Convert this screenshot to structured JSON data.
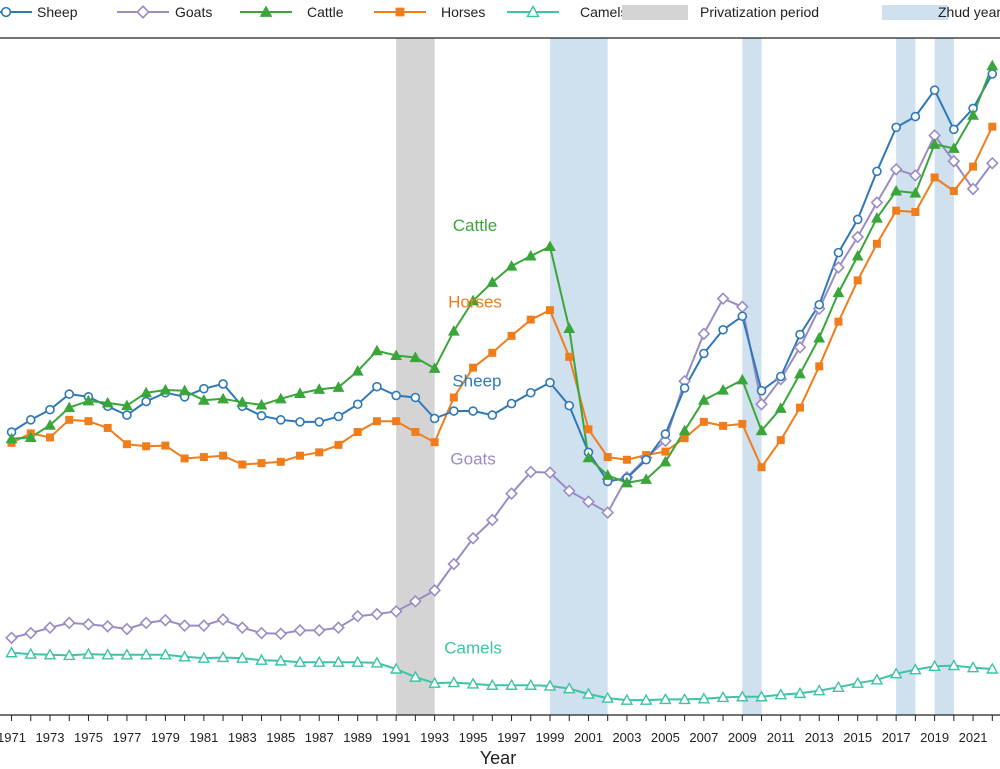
{
  "chart_data": {
    "type": "line",
    "title": "",
    "xlabel": "Year",
    "ylabel": "",
    "x": [
      1971,
      1972,
      1973,
      1974,
      1975,
      1976,
      1977,
      1978,
      1979,
      1980,
      1981,
      1982,
      1983,
      1984,
      1985,
      1986,
      1987,
      1988,
      1989,
      1990,
      1991,
      1992,
      1993,
      1994,
      1995,
      1996,
      1997,
      1998,
      1999,
      2000,
      2001,
      2002,
      2003,
      2004,
      2005,
      2006,
      2007,
      2008,
      2009,
      2010,
      2011,
      2012,
      2013,
      2014,
      2015,
      2016,
      2017,
      2018,
      2019,
      2020,
      2021,
      2022
    ],
    "x_tick_labels": [
      "1971",
      "1973",
      "1975",
      "1977",
      "1979",
      "1981",
      "1983",
      "1985",
      "1987",
      "1989",
      "1991",
      "1993",
      "1995",
      "1997",
      "1999",
      "2001",
      "2003",
      "2005",
      "2007",
      "2009",
      "2011",
      "2013",
      "2015",
      "2017",
      "2019",
      "2021"
    ],
    "xlim": [
      1970.4,
      2022.4
    ],
    "ylim": [
      0,
      100
    ],
    "series": [
      {
        "name": "Sheep",
        "color": "#2f78b7",
        "marker": "circle-open",
        "values": [
          41.8,
          43.6,
          45.1,
          47.4,
          47.0,
          45.6,
          44.3,
          46.3,
          47.6,
          47.0,
          48.2,
          48.9,
          45.6,
          44.2,
          43.6,
          43.3,
          43.3,
          44.1,
          45.9,
          48.5,
          47.2,
          46.9,
          43.8,
          44.9,
          44.9,
          44.3,
          46.0,
          47.6,
          49.1,
          45.7,
          38.8,
          34.5,
          35.0,
          37.7,
          41.5,
          48.3,
          53.4,
          56.9,
          58.9,
          47.9,
          50.0,
          56.2,
          60.6,
          68.3,
          73.2,
          80.3,
          86.8,
          88.4,
          92.3,
          86.5,
          89.6,
          94.7
        ]
      },
      {
        "name": "Goats",
        "color": "#9b8cc6",
        "marker": "diamond-open",
        "values": [
          11.4,
          12.1,
          12.9,
          13.6,
          13.4,
          13.1,
          12.7,
          13.6,
          14.0,
          13.2,
          13.2,
          14.1,
          12.9,
          12.1,
          12.0,
          12.5,
          12.5,
          12.9,
          14.6,
          14.9,
          15.3,
          16.8,
          18.4,
          22.3,
          26.1,
          28.8,
          32.7,
          35.9,
          35.8,
          33.1,
          31.5,
          29.9,
          35.1,
          38.0,
          40.5,
          49.3,
          56.3,
          61.5,
          60.3,
          45.9,
          49.6,
          54.3,
          60.0,
          66.1,
          70.6,
          75.7,
          80.6,
          79.7,
          85.6,
          81.8,
          77.7,
          81.5
        ]
      },
      {
        "name": "Cattle",
        "color": "#3aa63a",
        "marker": "triangle-filled",
        "values": [
          40.8,
          41.0,
          42.8,
          45.4,
          46.4,
          46.1,
          45.7,
          47.6,
          48.0,
          47.9,
          46.5,
          46.7,
          46.2,
          45.8,
          46.7,
          47.5,
          48.1,
          48.4,
          50.8,
          53.8,
          53.1,
          52.8,
          51.2,
          56.7,
          61.2,
          63.9,
          66.3,
          67.8,
          69.2,
          57.1,
          38.0,
          35.4,
          34.3,
          34.8,
          37.4,
          42.0,
          46.5,
          48.0,
          49.5,
          42.0,
          45.3,
          50.4,
          55.7,
          62.4,
          67.8,
          73.4,
          77.4,
          77.1,
          84.3,
          83.7,
          88.6,
          95.9
        ]
      },
      {
        "name": "Horses",
        "color": "#f07d1c",
        "marker": "square-filled",
        "values": [
          40.2,
          41.6,
          41.0,
          43.6,
          43.4,
          42.4,
          40.0,
          39.7,
          39.8,
          37.9,
          38.1,
          38.3,
          37.0,
          37.2,
          37.4,
          38.3,
          38.8,
          39.9,
          41.8,
          43.4,
          43.4,
          41.8,
          40.3,
          46.9,
          51.3,
          53.5,
          56.0,
          58.4,
          59.8,
          52.9,
          42.2,
          38.1,
          37.7,
          38.4,
          38.9,
          40.9,
          43.3,
          42.7,
          43.0,
          36.6,
          40.6,
          45.4,
          51.5,
          58.1,
          64.2,
          69.6,
          74.5,
          74.3,
          79.4,
          77.4,
          81.0,
          86.9
        ]
      },
      {
        "name": "Camels",
        "color": "#3cc4a5",
        "marker": "triangle-open",
        "values": [
          9.2,
          9.0,
          8.9,
          8.8,
          9.0,
          8.9,
          8.9,
          8.9,
          8.9,
          8.6,
          8.4,
          8.5,
          8.4,
          8.1,
          8.0,
          7.8,
          7.8,
          7.8,
          7.8,
          7.7,
          6.8,
          5.6,
          4.7,
          4.8,
          4.6,
          4.4,
          4.4,
          4.4,
          4.3,
          3.9,
          3.1,
          2.5,
          2.2,
          2.2,
          2.3,
          2.3,
          2.4,
          2.6,
          2.7,
          2.7,
          3.0,
          3.2,
          3.6,
          4.1,
          4.7,
          5.2,
          6.1,
          6.7,
          7.2,
          7.3,
          7.0,
          6.8
        ]
      }
    ],
    "shaded_periods": [
      {
        "label": "Privatization period",
        "start": 1991,
        "end": 1993,
        "color": "#d4d4d4"
      },
      {
        "label": "Zhud years",
        "start": 1999,
        "end": 2002,
        "color": "#cfe0ee"
      },
      {
        "label": "Zhud years",
        "start": 2009,
        "end": 2010,
        "color": "#cfe0ee"
      },
      {
        "label": "Zhud years",
        "start": 2017,
        "end": 2018,
        "color": "#cfe0ee"
      },
      {
        "label": "Zhud years",
        "start": 2019,
        "end": 2020,
        "color": "#cfe0ee"
      }
    ],
    "legend": [
      {
        "label": "Sheep",
        "kind": "Sheep"
      },
      {
        "label": "Goats",
        "kind": "Goats"
      },
      {
        "label": "Cattle",
        "kind": "Cattle"
      },
      {
        "label": "Horses",
        "kind": "Horses"
      },
      {
        "label": "Camels",
        "kind": "Camels"
      },
      {
        "label": "Privatization period",
        "kind": "privatization"
      },
      {
        "label": "Zhud years",
        "kind": "zhud"
      }
    ],
    "annotations": [
      {
        "text": "Cattle",
        "series": "Cattle",
        "x": 1995.1,
        "y": 71.5
      },
      {
        "text": "Horses",
        "series": "Horses",
        "x": 1995.1,
        "y": 60.2
      },
      {
        "text": "Sheep",
        "series": "Sheep",
        "x": 1995.2,
        "y": 48.5
      },
      {
        "text": "Goats",
        "series": "Goats",
        "x": 1995.0,
        "y": 37.0
      },
      {
        "text": "Camels",
        "series": "Camels",
        "x": 1995.0,
        "y": 9.1
      }
    ],
    "legend_placement": "top",
    "grid": false
  }
}
